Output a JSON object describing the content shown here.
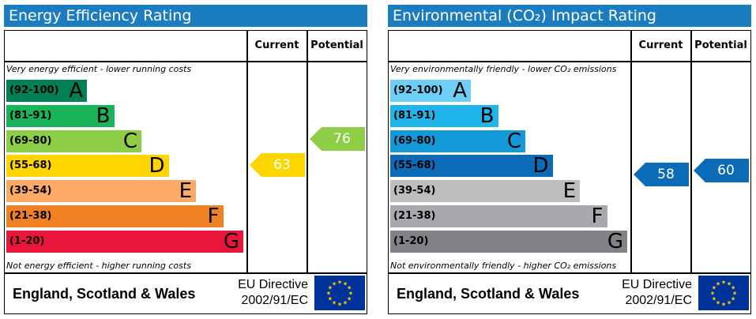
{
  "chart_data": [
    {
      "type": "bar",
      "title": "Energy Efficiency Rating",
      "columns": [
        "Current",
        "Potential"
      ],
      "top_caption": "Very energy efficient - lower running costs",
      "bottom_caption": "Not energy efficient - higher running costs",
      "bands": [
        {
          "range": "(92-100)",
          "letter": "A",
          "color": "#008054"
        },
        {
          "range": "(81-91)",
          "letter": "B",
          "color": "#19b459"
        },
        {
          "range": "(69-80)",
          "letter": "C",
          "color": "#8dce46"
        },
        {
          "range": "(55-68)",
          "letter": "D",
          "color": "#ffd500"
        },
        {
          "range": "(39-54)",
          "letter": "E",
          "color": "#fcaa65"
        },
        {
          "range": "(21-38)",
          "letter": "F",
          "color": "#ef8023"
        },
        {
          "range": "(1-20)",
          "letter": "G",
          "color": "#e9153b"
        }
      ],
      "current": {
        "value": "63",
        "color": "#ffd500"
      },
      "potential": {
        "value": "76",
        "color": "#8dce46"
      },
      "footer_country": "England, Scotland & Wales",
      "footer_directive_line1": "EU Directive",
      "footer_directive_line2": "2002/91/EC"
    },
    {
      "type": "bar",
      "title": "Environmental (CO₂) Impact Rating",
      "columns": [
        "Current",
        "Potential"
      ],
      "top_caption": "Very environmentally friendly - lower CO₂ emissions",
      "bottom_caption": "Not environmentally friendly - higher CO₂ emissions",
      "bands": [
        {
          "range": "(92-100)",
          "letter": "A",
          "color": "#6ecff6"
        },
        {
          "range": "(81-91)",
          "letter": "B",
          "color": "#1fb4ea"
        },
        {
          "range": "(69-80)",
          "letter": "C",
          "color": "#1499d8"
        },
        {
          "range": "(55-68)",
          "letter": "D",
          "color": "#0c6bb7"
        },
        {
          "range": "(39-54)",
          "letter": "E",
          "color": "#bbbdbf"
        },
        {
          "range": "(21-38)",
          "letter": "F",
          "color": "#a7a9ac"
        },
        {
          "range": "(1-20)",
          "letter": "G",
          "color": "#808285"
        }
      ],
      "current": {
        "value": "58",
        "color": "#0c6bb7"
      },
      "potential": {
        "value": "60",
        "color": "#0c6bb7"
      },
      "footer_country": "England, Scotland & Wales",
      "footer_directive_line1": "EU Directive",
      "footer_directive_line2": "2002/91/EC"
    }
  ]
}
